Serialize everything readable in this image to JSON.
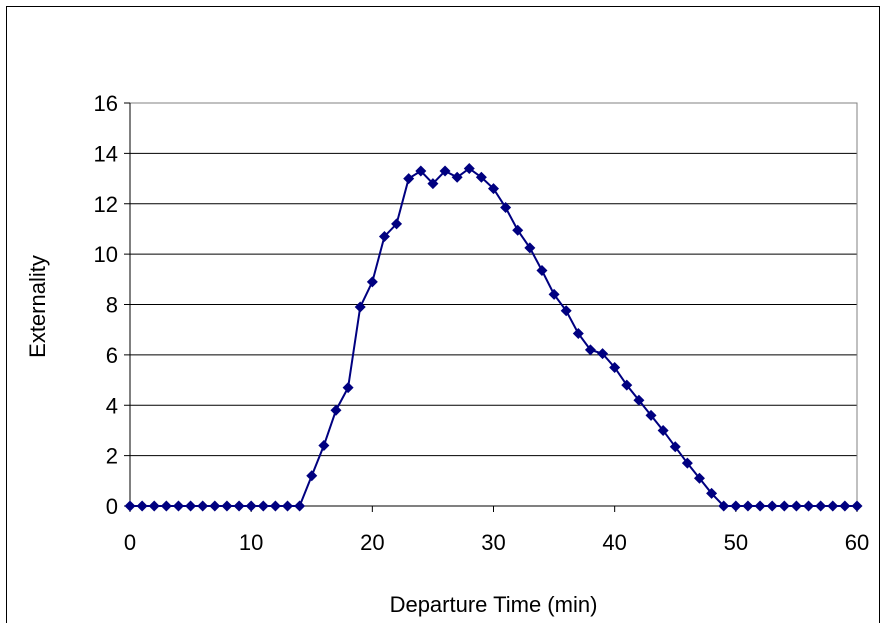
{
  "chart_data": {
    "type": "line",
    "title": "",
    "xlabel": "Departure Time (min)",
    "ylabel": "Externality",
    "xlim": [
      0,
      60
    ],
    "ylim": [
      0,
      16
    ],
    "x_ticks": [
      0,
      10,
      20,
      30,
      40,
      50,
      60
    ],
    "y_ticks": [
      0,
      2,
      4,
      6,
      8,
      10,
      12,
      14,
      16
    ],
    "grid": "horizontal",
    "legend": "none",
    "series_color": "#000080",
    "marker": "diamond",
    "series": [
      {
        "x": [
          0,
          1,
          2,
          3,
          4,
          5,
          6,
          7,
          8,
          9,
          10,
          11,
          12,
          13,
          14,
          15,
          16,
          17,
          18,
          19,
          20,
          21,
          22,
          23,
          24,
          25,
          26,
          27,
          28,
          29,
          30,
          31,
          32,
          33,
          34,
          35,
          36,
          37,
          38,
          39,
          40,
          41,
          42,
          43,
          44,
          45,
          46,
          47,
          48,
          49,
          50,
          51,
          52,
          53,
          54,
          55,
          56,
          57,
          58,
          59,
          60
        ],
        "values": [
          0,
          0,
          0,
          0,
          0,
          0,
          0,
          0,
          0,
          0,
          0,
          0,
          0,
          0,
          0,
          1.2,
          2.4,
          3.8,
          4.7,
          7.9,
          8.9,
          10.7,
          11.2,
          13.0,
          13.3,
          12.8,
          13.3,
          13.05,
          13.4,
          13.05,
          12.6,
          11.85,
          10.95,
          10.25,
          9.35,
          8.4,
          7.75,
          6.85,
          6.2,
          6.05,
          5.5,
          4.8,
          4.2,
          3.6,
          3.0,
          2.35,
          1.7,
          1.1,
          0.5,
          0,
          0,
          0,
          0,
          0,
          0,
          0,
          0,
          0,
          0,
          0,
          0
        ]
      }
    ]
  }
}
